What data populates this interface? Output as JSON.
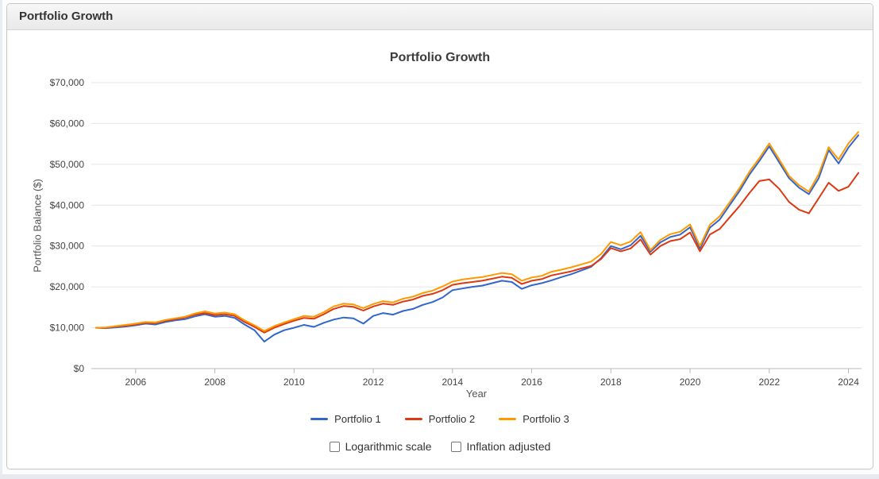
{
  "panel": {
    "header_title": "Portfolio Growth"
  },
  "chart_data": {
    "type": "line",
    "title": "Portfolio Growth",
    "xlabel": "Year",
    "ylabel": "Portfolio Balance ($)",
    "grid": true,
    "legend_position": "bottom",
    "xlim": [
      2004.88,
      2024.33
    ],
    "ylim": [
      0,
      70000
    ],
    "x_ticks": [
      {
        "value": 2006,
        "label": "2006"
      },
      {
        "value": 2008,
        "label": "2008"
      },
      {
        "value": 2010,
        "label": "2010"
      },
      {
        "value": 2012,
        "label": "2012"
      },
      {
        "value": 2014,
        "label": "2014"
      },
      {
        "value": 2016,
        "label": "2016"
      },
      {
        "value": 2018,
        "label": "2018"
      },
      {
        "value": 2020,
        "label": "2020"
      },
      {
        "value": 2022,
        "label": "2022"
      },
      {
        "value": 2024,
        "label": "2024"
      }
    ],
    "y_ticks": [
      {
        "value": 0,
        "label": "$0"
      },
      {
        "value": 10000,
        "label": "$10,000"
      },
      {
        "value": 20000,
        "label": "$20,000"
      },
      {
        "value": 30000,
        "label": "$30,000"
      },
      {
        "value": 40000,
        "label": "$40,000"
      },
      {
        "value": 50000,
        "label": "$50,000"
      },
      {
        "value": 60000,
        "label": "$60,000"
      },
      {
        "value": 70000,
        "label": "$70,000"
      }
    ],
    "colors": {
      "grid": "#e6e6e6",
      "baseline": "#b3bac1",
      "tick": "#b3bac1",
      "axis_text": "#444444",
      "title_text": "#3c3c3c"
    },
    "x": [
      2005,
      2005.25,
      2005.5,
      2005.75,
      2006,
      2006.25,
      2006.5,
      2006.75,
      2007,
      2007.25,
      2007.5,
      2007.75,
      2008,
      2008.25,
      2008.5,
      2008.75,
      2009,
      2009.25,
      2009.5,
      2009.75,
      2010,
      2010.25,
      2010.5,
      2010.75,
      2011,
      2011.25,
      2011.5,
      2011.75,
      2012,
      2012.25,
      2012.5,
      2012.75,
      2013,
      2013.25,
      2013.5,
      2013.75,
      2014,
      2014.25,
      2014.5,
      2014.75,
      2015,
      2015.25,
      2015.5,
      2015.75,
      2016,
      2016.25,
      2016.5,
      2016.75,
      2017,
      2017.25,
      2017.5,
      2017.75,
      2018,
      2018.25,
      2018.5,
      2018.75,
      2019,
      2019.25,
      2019.5,
      2019.75,
      2020,
      2020.25,
      2020.5,
      2020.75,
      2021,
      2021.25,
      2021.5,
      2021.75,
      2022,
      2022.25,
      2022.5,
      2022.75,
      2023,
      2023.25,
      2023.5,
      2023.75,
      2024,
      2024.25
    ],
    "series": [
      {
        "name": "Portfolio 1",
        "color": "#3366CC",
        "values": [
          10000,
          9900,
          10100,
          10300,
          10600,
          11000,
          10800,
          11400,
          11800,
          12100,
          12800,
          13300,
          12700,
          12900,
          12400,
          10800,
          9400,
          6600,
          8300,
          9400,
          10000,
          10700,
          10200,
          11200,
          12000,
          12500,
          12300,
          11000,
          12900,
          13600,
          13200,
          14100,
          14600,
          15600,
          16300,
          17400,
          19200,
          19600,
          20000,
          20300,
          20900,
          21500,
          21200,
          19500,
          20400,
          20900,
          21600,
          22400,
          23100,
          24000,
          24900,
          27000,
          30000,
          29200,
          30200,
          32500,
          28600,
          30900,
          32200,
          32800,
          34600,
          29400,
          34500,
          36500,
          40000,
          43500,
          47500,
          50800,
          54400,
          50500,
          46600,
          44300,
          42700,
          46600,
          53500,
          50200,
          54100,
          57100
        ]
      },
      {
        "name": "Portfolio 2",
        "color": "#DC3912",
        "values": [
          10000,
          10000,
          10300,
          10500,
          10800,
          11200,
          11100,
          11700,
          12100,
          12500,
          13200,
          13600,
          13100,
          13300,
          12900,
          11400,
          10200,
          8800,
          10000,
          10900,
          11700,
          12400,
          12200,
          13300,
          14600,
          15300,
          15100,
          14200,
          15200,
          15900,
          15600,
          16400,
          16900,
          17800,
          18300,
          19200,
          20500,
          20900,
          21200,
          21500,
          22000,
          22500,
          22200,
          20700,
          21500,
          21900,
          22800,
          23300,
          23800,
          24500,
          25100,
          26800,
          29500,
          28700,
          29400,
          31600,
          27900,
          30000,
          31200,
          31700,
          33300,
          28700,
          32800,
          34200,
          37000,
          39800,
          43000,
          45900,
          46300,
          44000,
          40800,
          38900,
          38000,
          41700,
          45500,
          43500,
          44500,
          47900
        ]
      },
      {
        "name": "Portfolio 3",
        "color": "#FF9900",
        "values": [
          10000,
          10100,
          10400,
          10700,
          11000,
          11400,
          11300,
          11900,
          12300,
          12700,
          13500,
          14000,
          13500,
          13700,
          13300,
          11800,
          10600,
          9200,
          10400,
          11300,
          12100,
          12900,
          12700,
          13800,
          15200,
          15900,
          15700,
          14800,
          15800,
          16500,
          16200,
          17100,
          17600,
          18500,
          19100,
          20100,
          21300,
          21800,
          22100,
          22400,
          22900,
          23400,
          23100,
          21500,
          22300,
          22700,
          23700,
          24200,
          24800,
          25500,
          26200,
          28000,
          31000,
          30200,
          31100,
          33400,
          29000,
          31500,
          32900,
          33500,
          35300,
          30000,
          35200,
          37300,
          40700,
          44200,
          48200,
          51500,
          55100,
          51200,
          47200,
          44900,
          43300,
          47600,
          54200,
          51200,
          55100,
          57900
        ]
      }
    ]
  },
  "controls": {
    "log_scale": {
      "label": "Logarithmic scale",
      "checked": false
    },
    "inflation": {
      "label": "Inflation adjusted",
      "checked": false
    }
  }
}
